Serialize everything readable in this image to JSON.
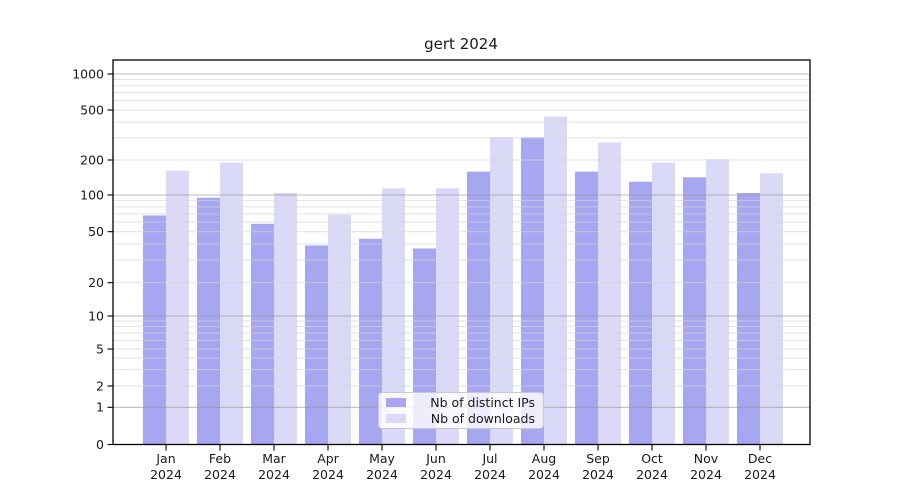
{
  "chart_data": {
    "type": "bar",
    "title": "gert 2024",
    "categories": [
      "Jan",
      "Feb",
      "Mar",
      "Apr",
      "May",
      "Jun",
      "Jul",
      "Aug",
      "Sep",
      "Oct",
      "Nov",
      "Dec"
    ],
    "category_year": "2024",
    "series": [
      {
        "name": "Nb of distinct IPs",
        "color": "#a6a6f1",
        "values": [
          68,
          95,
          58,
          39,
          44,
          37,
          159,
          303,
          159,
          130,
          142,
          104
        ]
      },
      {
        "name": "Nb of downloads",
        "color": "#dadaf8",
        "values": [
          162,
          190,
          104,
          69,
          114,
          114,
          305,
          443,
          276,
          190,
          203,
          154
        ]
      }
    ],
    "yticks": [
      0,
      1,
      2,
      5,
      10,
      20,
      50,
      100,
      200,
      500,
      1000
    ],
    "ylim": [
      0,
      1250
    ],
    "yscale": "symlog",
    "grid": true,
    "legend_position": "lower center"
  }
}
